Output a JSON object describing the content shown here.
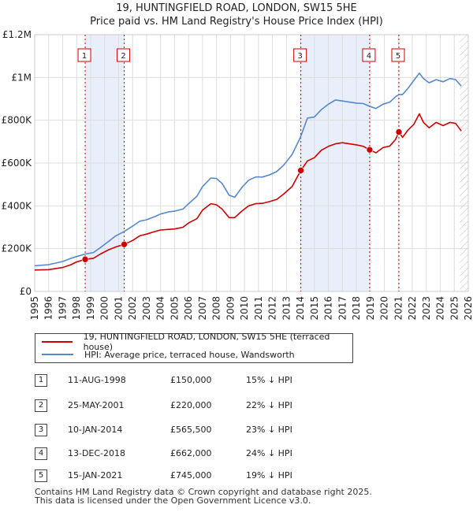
{
  "chart_data": {
    "type": "line",
    "title": "19, HUNTINGFIELD ROAD, LONDON, SW15 5HE",
    "subtitle": "Price paid vs. HM Land Registry's House Price Index (HPI)",
    "xlabel": "",
    "ylabel": "",
    "xlim": [
      1995,
      2026
    ],
    "ylim": [
      0,
      1200000
    ],
    "y_ticks": [
      {
        "value": 0,
        "label": "£0"
      },
      {
        "value": 200000,
        "label": "£200K"
      },
      {
        "value": 400000,
        "label": "£400K"
      },
      {
        "value": 600000,
        "label": "£600K"
      },
      {
        "value": 800000,
        "label": "£800K"
      },
      {
        "value": 1000000,
        "label": "£1M"
      },
      {
        "value": 1200000,
        "label": "£1.2M"
      }
    ],
    "x_ticks": [
      "1995",
      "1996",
      "1997",
      "1998",
      "1999",
      "2000",
      "2001",
      "2002",
      "2003",
      "2004",
      "2005",
      "2006",
      "2007",
      "2008",
      "2009",
      "2010",
      "2011",
      "2012",
      "2013",
      "2014",
      "2015",
      "2016",
      "2017",
      "2018",
      "2019",
      "2020",
      "2021",
      "2022",
      "2023",
      "2024",
      "2025",
      "2026"
    ],
    "grid": true,
    "series": [
      {
        "name": "19, HUNTINGFIELD ROAD, LONDON, SW15 5HE (terraced house)",
        "color": "#cc0000",
        "points": [
          [
            1995.0,
            100000
          ],
          [
            1996.0,
            102000
          ],
          [
            1997.0,
            112000
          ],
          [
            1997.6,
            125000
          ],
          [
            1998.0,
            138000
          ],
          [
            1998.6,
            150000
          ],
          [
            1999.2,
            155000
          ],
          [
            1999.7,
            175000
          ],
          [
            2000.3,
            195000
          ],
          [
            2000.8,
            208000
          ],
          [
            2001.4,
            220000
          ],
          [
            2002.0,
            238000
          ],
          [
            2002.5,
            260000
          ],
          [
            2003.0,
            268000
          ],
          [
            2003.6,
            280000
          ],
          [
            2004.0,
            287000
          ],
          [
            2004.6,
            290000
          ],
          [
            2005.0,
            292000
          ],
          [
            2005.6,
            300000
          ],
          [
            2006.0,
            320000
          ],
          [
            2006.6,
            340000
          ],
          [
            2007.0,
            380000
          ],
          [
            2007.6,
            410000
          ],
          [
            2008.0,
            405000
          ],
          [
            2008.4,
            385000
          ],
          [
            2008.9,
            345000
          ],
          [
            2009.3,
            345000
          ],
          [
            2009.8,
            375000
          ],
          [
            2010.3,
            400000
          ],
          [
            2010.8,
            410000
          ],
          [
            2011.3,
            412000
          ],
          [
            2011.8,
            420000
          ],
          [
            2012.3,
            430000
          ],
          [
            2012.8,
            455000
          ],
          [
            2013.4,
            490000
          ],
          [
            2014.03,
            565500
          ],
          [
            2014.5,
            610000
          ],
          [
            2015.0,
            625000
          ],
          [
            2015.5,
            660000
          ],
          [
            2016.0,
            678000
          ],
          [
            2016.5,
            690000
          ],
          [
            2017.0,
            695000
          ],
          [
            2017.5,
            690000
          ],
          [
            2018.0,
            685000
          ],
          [
            2018.5,
            678000
          ],
          [
            2018.95,
            662000
          ],
          [
            2019.4,
            648000
          ],
          [
            2019.9,
            672000
          ],
          [
            2020.4,
            680000
          ],
          [
            2020.8,
            710000
          ],
          [
            2021.04,
            745000
          ],
          [
            2021.3,
            720000
          ],
          [
            2021.7,
            755000
          ],
          [
            2022.1,
            780000
          ],
          [
            2022.5,
            830000
          ],
          [
            2022.8,
            790000
          ],
          [
            2023.2,
            765000
          ],
          [
            2023.7,
            790000
          ],
          [
            2024.2,
            775000
          ],
          [
            2024.7,
            790000
          ],
          [
            2025.1,
            785000
          ],
          [
            2025.5,
            750000
          ]
        ]
      },
      {
        "name": "HPI: Average price, terraced house, Wandsworth",
        "color": "#5588cc",
        "points": [
          [
            1995.0,
            120000
          ],
          [
            1996.0,
            125000
          ],
          [
            1997.0,
            140000
          ],
          [
            1997.6,
            155000
          ],
          [
            1998.0,
            163000
          ],
          [
            1998.6,
            175000
          ],
          [
            1999.2,
            182000
          ],
          [
            1999.7,
            205000
          ],
          [
            2000.3,
            235000
          ],
          [
            2000.8,
            260000
          ],
          [
            2001.4,
            280000
          ],
          [
            2002.0,
            305000
          ],
          [
            2002.5,
            328000
          ],
          [
            2003.0,
            335000
          ],
          [
            2003.6,
            350000
          ],
          [
            2004.0,
            362000
          ],
          [
            2004.6,
            372000
          ],
          [
            2005.0,
            375000
          ],
          [
            2005.6,
            385000
          ],
          [
            2006.0,
            410000
          ],
          [
            2006.6,
            445000
          ],
          [
            2007.0,
            490000
          ],
          [
            2007.6,
            530000
          ],
          [
            2008.0,
            528000
          ],
          [
            2008.4,
            505000
          ],
          [
            2008.9,
            450000
          ],
          [
            2009.3,
            440000
          ],
          [
            2009.8,
            485000
          ],
          [
            2010.3,
            520000
          ],
          [
            2010.8,
            535000
          ],
          [
            2011.3,
            535000
          ],
          [
            2011.8,
            545000
          ],
          [
            2012.3,
            560000
          ],
          [
            2012.8,
            590000
          ],
          [
            2013.4,
            640000
          ],
          [
            2014.0,
            720000
          ],
          [
            2014.5,
            810000
          ],
          [
            2015.0,
            815000
          ],
          [
            2015.5,
            850000
          ],
          [
            2016.0,
            875000
          ],
          [
            2016.5,
            895000
          ],
          [
            2017.0,
            890000
          ],
          [
            2017.5,
            885000
          ],
          [
            2018.0,
            880000
          ],
          [
            2018.5,
            878000
          ],
          [
            2018.95,
            865000
          ],
          [
            2019.4,
            855000
          ],
          [
            2019.9,
            875000
          ],
          [
            2020.4,
            885000
          ],
          [
            2020.8,
            910000
          ],
          [
            2021.04,
            920000
          ],
          [
            2021.3,
            920000
          ],
          [
            2021.7,
            950000
          ],
          [
            2022.1,
            985000
          ],
          [
            2022.5,
            1020000
          ],
          [
            2022.8,
            995000
          ],
          [
            2023.2,
            975000
          ],
          [
            2023.7,
            990000
          ],
          [
            2024.2,
            980000
          ],
          [
            2024.7,
            995000
          ],
          [
            2025.1,
            990000
          ],
          [
            2025.5,
            960000
          ]
        ]
      }
    ],
    "sales": [
      {
        "num": "1",
        "x": 1998.61,
        "value": 150000,
        "date": "11-AUG-1998",
        "price": "£150,000",
        "hpi": "15% ↓ HPI"
      },
      {
        "num": "2",
        "x": 2001.4,
        "value": 220000,
        "date": "25-MAY-2001",
        "price": "£220,000",
        "hpi": "22% ↓ HPI"
      },
      {
        "num": "3",
        "x": 2014.03,
        "value": 565500,
        "date": "10-JAN-2014",
        "price": "£565,500",
        "hpi": "23% ↓ HPI"
      },
      {
        "num": "4",
        "x": 2018.95,
        "value": 662000,
        "date": "13-DEC-2018",
        "price": "£662,000",
        "hpi": "24% ↓ HPI"
      },
      {
        "num": "5",
        "x": 2021.04,
        "value": 745000,
        "date": "15-JAN-2021",
        "price": "£745,000",
        "hpi": "19% ↓ HPI"
      }
    ],
    "shaded_ranges": [
      [
        1998.61,
        2001.4
      ],
      [
        2014.03,
        2018.95
      ],
      [
        2021.04,
        2021.04
      ]
    ],
    "future_hatch_start": 2025.4
  },
  "legend": {
    "property": "19, HUNTINGFIELD ROAD, LONDON, SW15 5HE (terraced house)",
    "hpi": "HPI: Average price, terraced house, Wandsworth"
  },
  "colors": {
    "property": "#cc0000",
    "hpi": "#5588cc",
    "shade": "#e8eefa",
    "grid": "#dddddd"
  },
  "footer": {
    "line1": "Contains HM Land Registry data © Crown copyright and database right 2025.",
    "line2": "This data is licensed under the Open Government Licence v3.0."
  }
}
